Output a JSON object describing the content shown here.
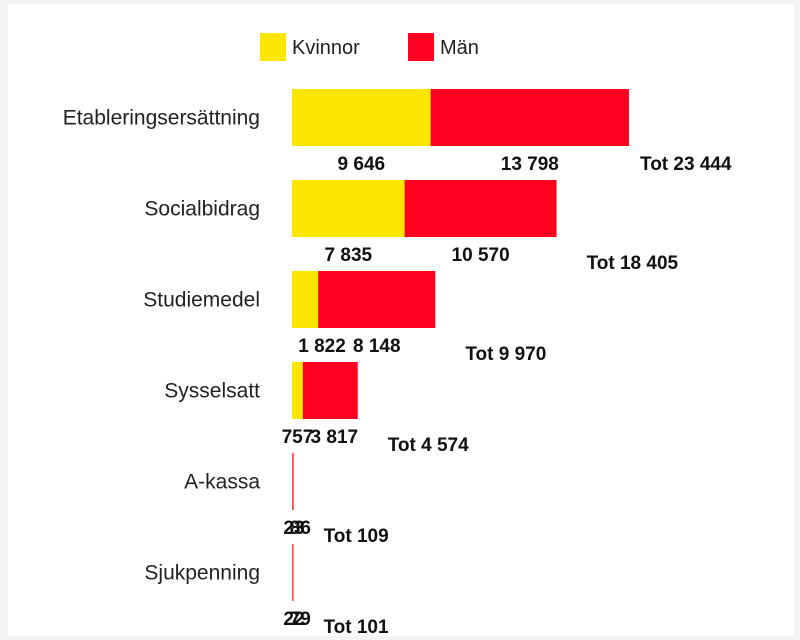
{
  "chart_data": {
    "type": "bar",
    "orientation": "horizontal",
    "stacked": true,
    "title": "",
    "xlabel": "",
    "ylabel": "",
    "xlim": [
      0,
      23444
    ],
    "grid": false,
    "legend_position": "top",
    "categories": [
      "Etableringsersättning",
      "Socialbidrag",
      "Studiemedel",
      "Sysselsatt",
      "A-kassa",
      "Sjukpenning"
    ],
    "series": [
      {
        "name": "Kvinnor",
        "color": "#ffe600",
        "values": [
          9646,
          7835,
          1822,
          757,
          23,
          22
        ],
        "labels": [
          "9 646",
          "7 835",
          "1 822",
          "757",
          "23",
          "22"
        ]
      },
      {
        "name": "Män",
        "color": "#ff0021",
        "values": [
          13798,
          10570,
          8148,
          3817,
          86,
          79
        ],
        "labels": [
          "13 798",
          "10 570",
          "8 148",
          "3 817",
          "86",
          "79"
        ]
      }
    ],
    "totals": [
      23444,
      18405,
      9970,
      4574,
      109,
      101
    ],
    "total_labels": [
      "Tot 23 444",
      "Tot 18 405",
      "Tot 9 970",
      "Tot 4 574",
      "Tot 109",
      "Tot 101"
    ]
  }
}
